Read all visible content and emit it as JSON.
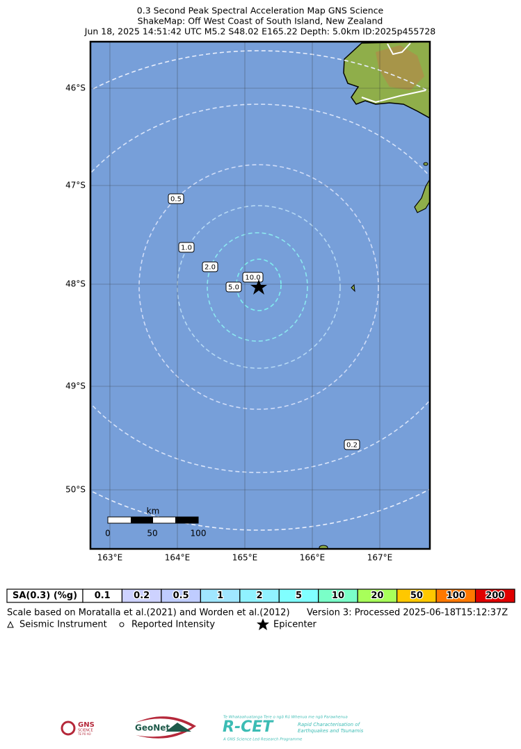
{
  "header": {
    "title_lines": [
      "0.3 Second Peak Spectral Acceleration Map GNS Science",
      "ShakeMap: Off West Coast of South Island, New Zealand",
      "Jun 18, 2025 14:51:42 UTC M5.2 S48.02 E165.22 Depth: 5.0km ID:2025p455728"
    ]
  },
  "map": {
    "lat_labels": [
      "46°S",
      "47°S",
      "48°S",
      "49°S",
      "50°S"
    ],
    "lon_labels": [
      "163°E",
      "164°E",
      "165°E",
      "166°E",
      "167°E"
    ],
    "contour_labels": [
      "0.5",
      "1.0",
      "2.0",
      "5.0",
      "10.0",
      "0.2"
    ],
    "scale_bar": {
      "unit": "km",
      "ticks": [
        "0",
        "50",
        "100"
      ]
    }
  },
  "legend": {
    "title": "SA(0.3) (%g)",
    "items": [
      {
        "label": "0.1",
        "color": "#ffffff"
      },
      {
        "label": "0.2",
        "color": "#cdd2ff"
      },
      {
        "label": "0.5",
        "color": "#bfccff"
      },
      {
        "label": "1",
        "color": "#a0e6ff"
      },
      {
        "label": "2",
        "color": "#90f2ff"
      },
      {
        "label": "5",
        "color": "#80ffff"
      },
      {
        "label": "10",
        "color": "#7affc8"
      },
      {
        "label": "20",
        "color": "#a8ff5a"
      },
      {
        "label": "50",
        "color": "#ffc800"
      },
      {
        "label": "100",
        "color": "#ff7800"
      },
      {
        "label": "200",
        "color": "#e00000"
      }
    ]
  },
  "footer": {
    "note": "Scale based on Moratalla et al.(2021) and Worden et al.(2012)",
    "version": "Version 3: Processed 2025-06-18T15:12:37Z",
    "symbols": [
      "Seismic Instrument",
      "Reported Intensity",
      "Epicenter"
    ]
  },
  "logos": {
    "gns": [
      "GNS",
      "SCIENCE",
      "TE PŪ AO"
    ],
    "geonet": "GeoNet",
    "rcet": [
      "Te Whakaahuatanga Tere o ngā Rū Whenua me ngā Parawhenua",
      "R-CET",
      "Rapid Characterisation of",
      "Earthquakes and Tsunamis",
      "A GNS Science Led Research Programme"
    ]
  }
}
